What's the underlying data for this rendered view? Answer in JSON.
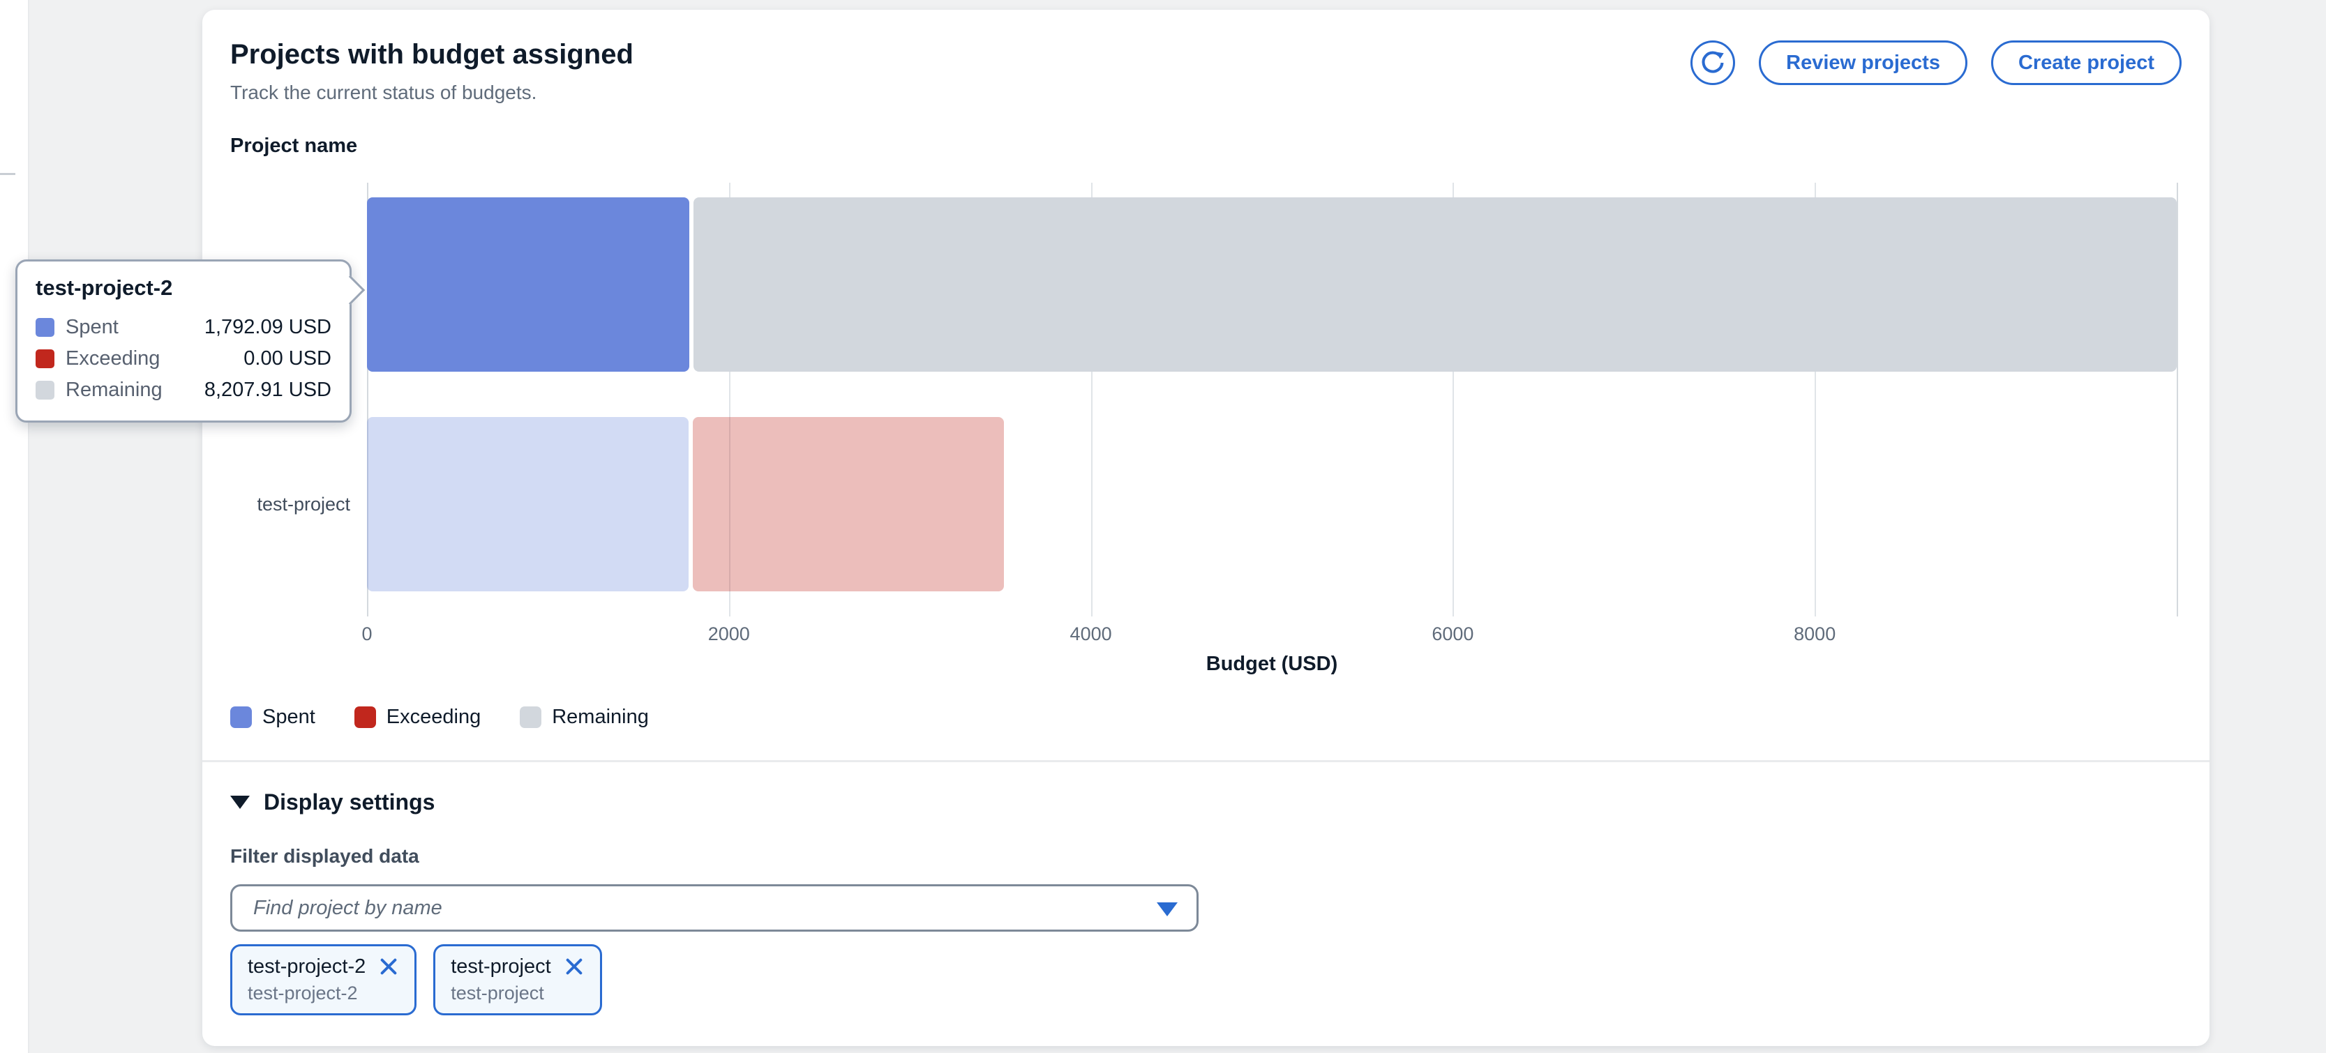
{
  "colors": {
    "accent": "#2a6bd1",
    "spent": "#6b87dc",
    "exceeding": "#c1271d",
    "remaining": "#d2d7dd",
    "page_background": "#f0f1f2"
  },
  "header": {
    "title": "Projects with budget assigned",
    "subtitle": "Track the current status of budgets.",
    "refresh_icon": "refresh-icon",
    "buttons": [
      {
        "label": "Review projects"
      },
      {
        "label": "Create project"
      }
    ]
  },
  "chart": {
    "y_axis_title": "Project name",
    "x_axis_title": "Budget (USD)",
    "highlighted_category": "test-project-2"
  },
  "chart_data": {
    "type": "bar",
    "orientation": "horizontal",
    "stacked": true,
    "title": "Projects with budget assigned",
    "xlabel": "Budget (USD)",
    "ylabel": "Project name",
    "xlim": [
      0,
      10000
    ],
    "xticks": [
      0,
      2000,
      4000,
      6000,
      8000
    ],
    "grid": "vertical",
    "legend_position": "bottom",
    "categories": [
      "test-project-2",
      "test-project"
    ],
    "series": [
      {
        "name": "Spent",
        "color": "#6b87dc",
        "values": [
          1792.09,
          1790
        ]
      },
      {
        "name": "Exceeding",
        "color": "#c1271d",
        "values": [
          0,
          1730
        ]
      },
      {
        "name": "Remaining",
        "color": "#d2d7dd",
        "values": [
          8207.91,
          0
        ]
      }
    ]
  },
  "tooltip": {
    "title": "test-project-2",
    "rows": [
      {
        "label": "Spent",
        "value": "1,792.09 USD",
        "color": "#6b87dc"
      },
      {
        "label": "Exceeding",
        "value": "0.00 USD",
        "color": "#c1271d"
      },
      {
        "label": "Remaining",
        "value": "8,207.91 USD",
        "color": "#d2d7dd"
      }
    ]
  },
  "legend": {
    "items": [
      {
        "label": "Spent",
        "color": "#6b87dc"
      },
      {
        "label": "Exceeding",
        "color": "#c1271d"
      },
      {
        "label": "Remaining",
        "color": "#d2d7dd"
      }
    ]
  },
  "display_settings": {
    "title": "Display settings",
    "expand_icon": "caret-down-icon",
    "filter_label": "Filter displayed data",
    "filter_placeholder": "Find project by name",
    "filter_value": "",
    "tokens": [
      {
        "label": "test-project-2",
        "description": "test-project-2",
        "dismiss_icon": "close-icon"
      },
      {
        "label": "test-project",
        "description": "test-project",
        "dismiss_icon": "close-icon"
      }
    ]
  }
}
